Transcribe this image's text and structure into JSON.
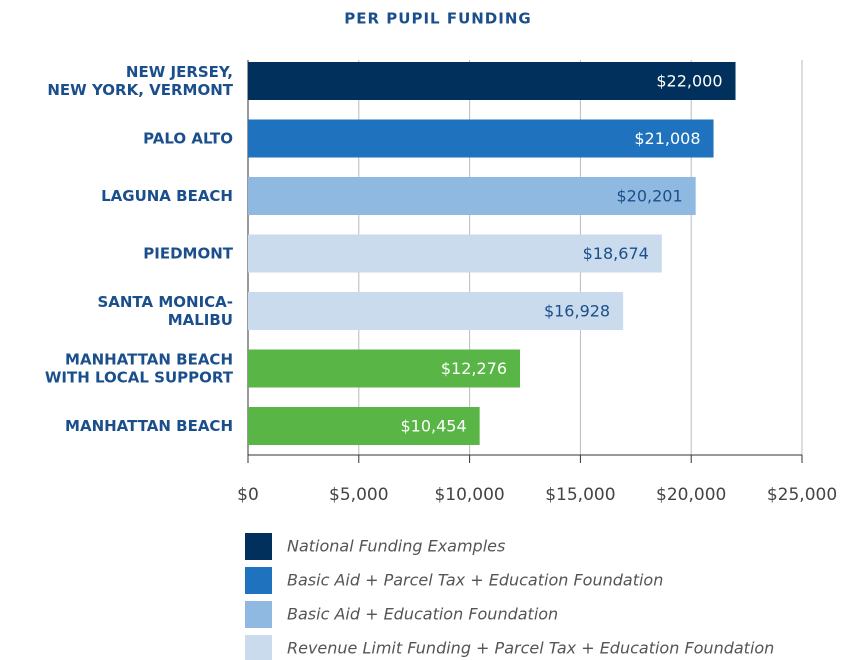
{
  "chart_data": {
    "type": "bar",
    "orientation": "horizontal",
    "title": "PER PUPIL FUNDING",
    "categories": [
      [
        "NEW JERSEY,",
        "NEW YORK, VERMONT"
      ],
      [
        "PALO ALTO"
      ],
      [
        "LAGUNA BEACH"
      ],
      [
        "PIEDMONT"
      ],
      [
        "SANTA MONICA-",
        "MALIBU"
      ],
      [
        "MANHATTAN BEACH",
        "WITH LOCAL SUPPORT"
      ],
      [
        "MANHATTAN BEACH"
      ]
    ],
    "values": [
      22000,
      21008,
      20201,
      18674,
      16928,
      12276,
      10454
    ],
    "value_labels": [
      "$22,000",
      "$21,008",
      "$20,201",
      "$18,674",
      "$16,928",
      "$12,276",
      "$10,454"
    ],
    "colors": [
      "#00305b",
      "#1f73be",
      "#90b9e1",
      "#c9dbec",
      "#c9dbec",
      "#5ab547",
      "#5ab547"
    ],
    "xlim": [
      0,
      25000
    ],
    "xticks": [
      {
        "value": 0,
        "label": "$0"
      },
      {
        "value": 5000,
        "label": "$5,000"
      },
      {
        "value": 10000,
        "label": "$10,000"
      },
      {
        "value": 15000,
        "label": "$15,000"
      },
      {
        "value": 20000,
        "label": "$20,000"
      },
      {
        "value": 25000,
        "label": "$25,000"
      }
    ],
    "grid": true,
    "legend": [
      {
        "name": "National Funding Examples",
        "color": "#00305b"
      },
      {
        "name": "Basic Aid + Parcel Tax + Education Foundation",
        "color": "#1f73be"
      },
      {
        "name": "Basic Aid + Education Foundation",
        "color": "#90b9e1"
      },
      {
        "name": "Revenue Limit Funding + Parcel Tax + Education Foundation",
        "color": "#c9dbec"
      }
    ]
  }
}
